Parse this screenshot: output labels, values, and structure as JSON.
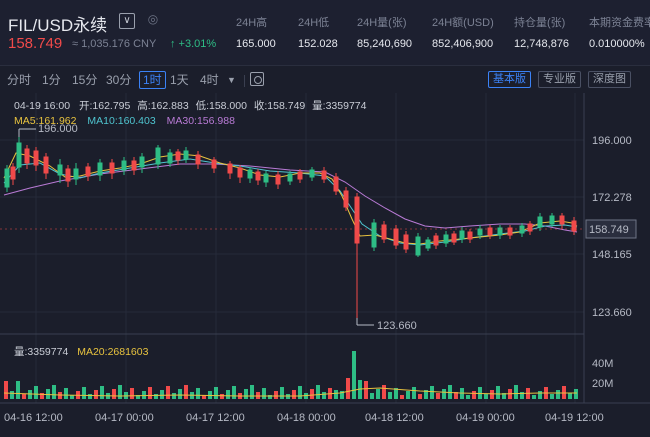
{
  "header": {
    "symbol": "FIL/USD永续",
    "price": "158.749",
    "cny": "≈ 1,035.176 CNY",
    "change": "↑ +3.01%",
    "dropdown_glyph": "∨",
    "stats": [
      {
        "label": "24H高",
        "value": "165.000"
      },
      {
        "label": "24H低",
        "value": "152.028"
      },
      {
        "label": "24H量(张)",
        "value": "85,240,690"
      },
      {
        "label": "24H额(USD)",
        "value": "852,406,900"
      },
      {
        "label": "持仓量(张)",
        "value": "12,748,876"
      },
      {
        "label": "本期资金费率",
        "value": "0.010000%"
      }
    ]
  },
  "toolbar": {
    "timeframes": [
      "分时",
      "1分",
      "15分",
      "30分",
      "1时",
      "1天",
      "4时"
    ],
    "active_timeframe": "1时",
    "views": [
      "基本版",
      "专业版",
      "深度图"
    ],
    "active_view": "基本版"
  },
  "info": {
    "time": "04-19 16:00",
    "open": "开:162.795",
    "high": "高:162.883",
    "low": "低:158.000",
    "close": "收:158.749",
    "volume": "量:3359774",
    "ma5": "MA5:161.962",
    "ma10": "MA10:160.403",
    "ma30": "MA30:156.988"
  },
  "price_axis": {
    "ticks": [
      "196.000",
      "172.278",
      "148.165",
      "123.660"
    ],
    "current": "158.749"
  },
  "annotations": {
    "high_label": "196.000",
    "low_label": "123.660"
  },
  "volume_panel": {
    "volume": "量:3359774",
    "ma20": "MA20:2681603",
    "ticks": [
      "40M",
      "20M"
    ]
  },
  "time_axis": {
    "labels": [
      "04-16 12:00",
      "04-17 00:00",
      "04-17 12:00",
      "04-18 00:00",
      "04-18 12:00",
      "04-19 00:00",
      "04-19 12:00"
    ]
  },
  "colors": {
    "up": "#2ebd85",
    "down": "#f04a4a",
    "ma5": "#e8c33f",
    "ma10": "#4fc4cf",
    "ma30": "#b97bd6",
    "accent": "#3b82f6"
  },
  "chart_data": {
    "type": "candlestick",
    "x_range": [
      "04-16 08:00",
      "04-19 16:00"
    ],
    "y_range": [
      118,
      208
    ],
    "approx_close_path": [
      {
        "t": "04-16 08:00",
        "close": 180
      },
      {
        "t": "04-16 10:00",
        "close": 196
      },
      {
        "t": "04-16 14:00",
        "close": 188
      },
      {
        "t": "04-16 20:00",
        "close": 182
      },
      {
        "t": "04-17 04:00",
        "close": 186
      },
      {
        "t": "04-17 08:00",
        "close": 193
      },
      {
        "t": "04-17 12:00",
        "close": 186
      },
      {
        "t": "04-17 20:00",
        "close": 182
      },
      {
        "t": "04-18 04:00",
        "close": 183
      },
      {
        "t": "04-18 06:00",
        "close": 165
      },
      {
        "t": "04-18 07:00",
        "close": 146
      },
      {
        "t": "04-18 10:00",
        "close": 153
      },
      {
        "t": "04-18 14:00",
        "close": 148
      },
      {
        "t": "04-18 20:00",
        "close": 151
      },
      {
        "t": "04-19 04:00",
        "close": 155
      },
      {
        "t": "04-19 12:00",
        "close": 160
      },
      {
        "t": "04-19 16:00",
        "close": 158.749
      }
    ],
    "low_marker": {
      "t": "04-18 06:00",
      "value": 123.66
    },
    "high_marker": {
      "t": "04-16 10:00",
      "value": 196.0
    },
    "volume_spike": {
      "t": "04-18 07:00",
      "value_approx": "≈48M"
    }
  }
}
